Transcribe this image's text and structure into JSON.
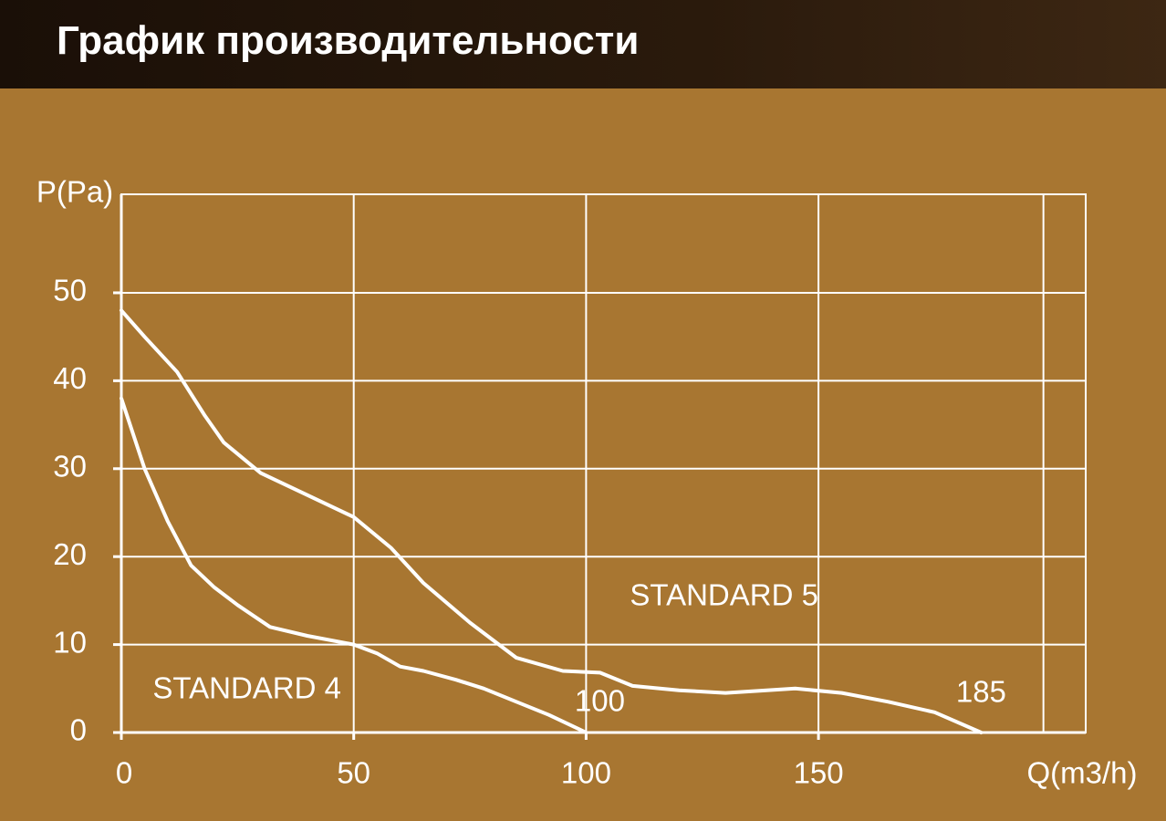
{
  "header": {
    "title": "График производительности"
  },
  "chart_data": {
    "type": "line",
    "y_label": "P(Pa)",
    "x_label": "Q(m3/h)",
    "xlim": [
      0,
      207.5
    ],
    "ylim": [
      0,
      61.2
    ],
    "xticks": [
      0,
      50,
      100,
      150
    ],
    "yticks": [
      0,
      10,
      20,
      30,
      40,
      50
    ],
    "x_grid_lines": [
      0,
      50,
      100,
      150,
      198.4
    ],
    "grid": true,
    "line_color": "#ffffff",
    "series": [
      {
        "name": "STANDARD 5",
        "end_label": "185",
        "x": [
          0,
          5,
          12,
          18,
          22,
          30,
          40,
          50,
          58,
          65,
          75,
          85,
          95,
          103,
          110,
          120,
          130,
          145,
          155,
          165,
          175,
          185
        ],
        "values": [
          48,
          45,
          41,
          36,
          33,
          29.5,
          27,
          24.5,
          21,
          17,
          12.5,
          8.5,
          7,
          6.8,
          5.3,
          4.8,
          4.5,
          5,
          4.5,
          3.5,
          2.3,
          0
        ]
      },
      {
        "name": "STANDARD 4",
        "end_label": "100",
        "x": [
          0,
          5,
          10,
          15,
          20,
          25,
          32,
          40,
          50,
          55,
          60,
          65,
          72,
          78,
          85,
          92,
          100
        ],
        "values": [
          38,
          30,
          24,
          19,
          16.5,
          14.5,
          12,
          11,
          10,
          9,
          7.5,
          7,
          6,
          5,
          3.5,
          2,
          0
        ]
      }
    ]
  }
}
